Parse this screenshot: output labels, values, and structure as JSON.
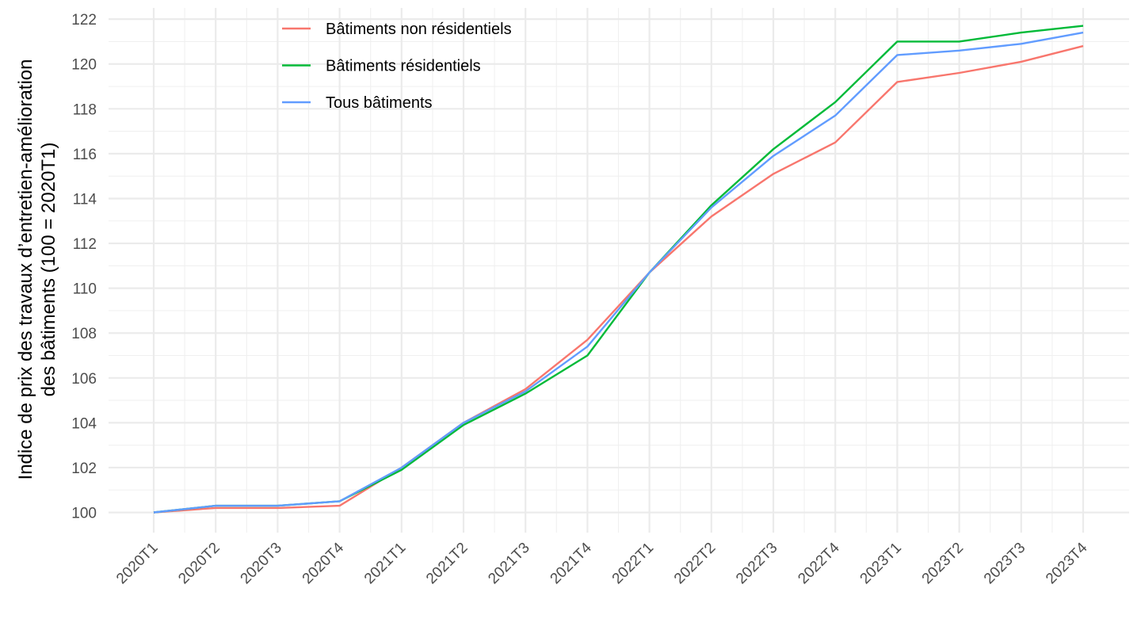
{
  "chart_data": {
    "type": "line",
    "title": "",
    "xlabel": "",
    "ylabel_lines": [
      "Indice de prix des travaux d’entretien-amélioration",
      "des bâtiments (100 = 2020T1)"
    ],
    "categories": [
      "2020T1",
      "2020T2",
      "2020T3",
      "2020T4",
      "2021T1",
      "2021T2",
      "2021T3",
      "2021T4",
      "2022T1",
      "2022T2",
      "2022T3",
      "2022T4",
      "2023T1",
      "2023T2",
      "2023T3",
      "2023T4"
    ],
    "ylim": [
      99.1,
      122.5
    ],
    "yticks": [
      100,
      102,
      104,
      106,
      108,
      110,
      112,
      114,
      116,
      118,
      120,
      122
    ],
    "grid": true,
    "legend_position": "top-left",
    "series": [
      {
        "name": "Bâtiments non résidentiels",
        "color": "#F8766D",
        "values": [
          100.0,
          100.2,
          100.2,
          100.3,
          102.0,
          104.0,
          105.5,
          107.7,
          110.7,
          113.2,
          115.1,
          116.5,
          119.2,
          119.6,
          120.1,
          120.8
        ]
      },
      {
        "name": "Bâtiments résidentiels",
        "color": "#00BA38",
        "values": [
          100.0,
          100.3,
          100.3,
          100.5,
          101.9,
          103.9,
          105.3,
          107.0,
          110.7,
          113.7,
          116.2,
          118.3,
          121.0,
          121.0,
          121.4,
          121.7
        ]
      },
      {
        "name": "Tous bâtiments",
        "color": "#619CFF",
        "values": [
          100.0,
          100.3,
          100.3,
          100.5,
          102.0,
          104.0,
          105.4,
          107.4,
          110.7,
          113.6,
          115.9,
          117.7,
          120.4,
          120.6,
          120.9,
          121.4
        ]
      }
    ]
  }
}
